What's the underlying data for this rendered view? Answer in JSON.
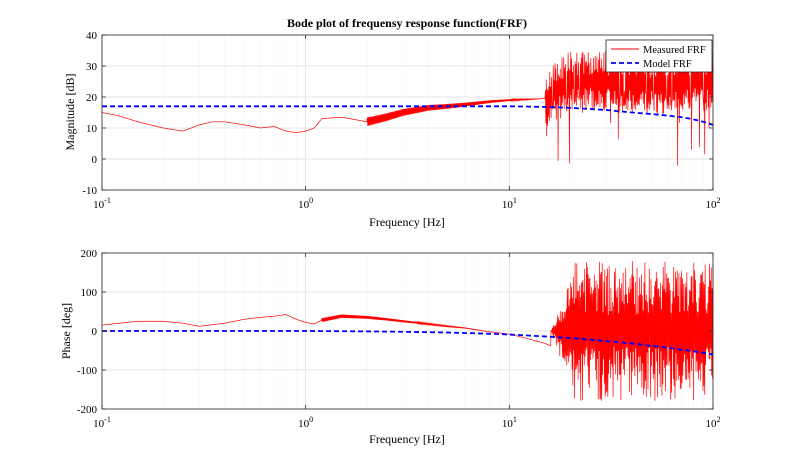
{
  "chart_data": [
    {
      "type": "line",
      "title": "Bode plot of frequensy response function(FRF)",
      "xlabel": "Frequency [Hz]",
      "ylabel": "Magnitude [dB]",
      "xscale": "log",
      "xlim": [
        0.1,
        100
      ],
      "ylim": [
        -10,
        40
      ],
      "xticks": [
        0.1,
        1,
        10,
        100
      ],
      "yticks": [
        -10,
        0,
        10,
        20,
        30,
        40
      ],
      "grid": true,
      "legend": "top-right",
      "series": [
        {
          "name": "Measured FRF",
          "color": "#ff0000",
          "style": "solid",
          "note_oscillation_above_hz": 15,
          "x": [
            0.1,
            0.12,
            0.15,
            0.2,
            0.25,
            0.3,
            0.35,
            0.4,
            0.5,
            0.6,
            0.7,
            0.8,
            0.9,
            1.0,
            1.1,
            1.2,
            1.5,
            2.0,
            2.5,
            3.0,
            4.0,
            5.0,
            6.0,
            8.0,
            10,
            12,
            15,
            20,
            30,
            50,
            70,
            100
          ],
          "y": [
            15,
            14,
            12,
            10,
            9,
            11,
            12,
            12,
            11,
            10,
            10.5,
            9,
            8.5,
            9,
            10,
            13,
            13.5,
            12,
            13.5,
            15,
            16.5,
            17,
            17.5,
            18.5,
            19,
            19.2,
            19.5,
            25,
            25,
            24,
            25,
            25
          ]
        },
        {
          "name": "Model FRF",
          "color": "#0000ff",
          "style": "dashed",
          "x": [
            0.1,
            0.3,
            1,
            3,
            5,
            8,
            10,
            15,
            20,
            30,
            40,
            50,
            60,
            70,
            80,
            90,
            100
          ],
          "y": [
            17,
            17,
            17,
            17,
            17,
            17,
            17,
            16.8,
            16.5,
            15.8,
            15,
            14.5,
            14,
            13.5,
            12.8,
            12,
            11
          ]
        }
      ]
    },
    {
      "type": "line",
      "xlabel": "Frequency [Hz]",
      "ylabel": "Phase [deg]",
      "xscale": "log",
      "xlim": [
        0.1,
        100
      ],
      "ylim": [
        -200,
        200
      ],
      "xticks": [
        0.1,
        1,
        10,
        100
      ],
      "yticks": [
        -200,
        -100,
        0,
        100,
        200
      ],
      "grid": true,
      "series": [
        {
          "color": "#ff0000",
          "style": "solid",
          "note_oscillation_above_hz": 16,
          "x": [
            0.1,
            0.15,
            0.2,
            0.25,
            0.3,
            0.4,
            0.5,
            0.6,
            0.7,
            0.8,
            0.9,
            1.0,
            1.1,
            1.2,
            1.5,
            2.0,
            2.5,
            3.0,
            4.0,
            5.0,
            6.0,
            8.0,
            10,
            12,
            15,
            16,
            20,
            30,
            50,
            100
          ],
          "y": [
            15,
            25,
            25,
            20,
            12,
            20,
            30,
            35,
            38,
            42,
            30,
            22,
            18,
            28,
            38,
            35,
            30,
            25,
            18,
            12,
            8,
            -2,
            -8,
            -18,
            -32,
            -38,
            0,
            0,
            0,
            0
          ]
        },
        {
          "color": "#0000ff",
          "style": "dashed",
          "x": [
            0.1,
            0.3,
            1,
            2,
            3,
            5,
            8,
            10,
            15,
            20,
            30,
            40,
            50,
            60,
            70,
            80,
            90,
            100
          ],
          "y": [
            0,
            0,
            0,
            -1,
            -2,
            -4,
            -7,
            -9,
            -14,
            -18,
            -26,
            -32,
            -38,
            -43,
            -48,
            -52,
            -56,
            -60
          ]
        }
      ]
    }
  ]
}
